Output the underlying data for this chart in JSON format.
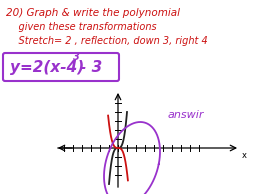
{
  "bg_color": "#ffffff",
  "title_lines": [
    "20) Graph & write the polynomial",
    "    given these transformations",
    "    Stretch= 2 , reflection, down 3, right 4"
  ],
  "equation_box_color": "#9932cc",
  "text_color": "#cc1111",
  "answer_text": "answir",
  "answer_color": "#9932cc",
  "curve_red_color": "#cc1111",
  "curve_black_color": "#222222",
  "curve_purple_color": "#9932cc",
  "figsize": [
    2.59,
    1.94
  ],
  "dpi": 100
}
